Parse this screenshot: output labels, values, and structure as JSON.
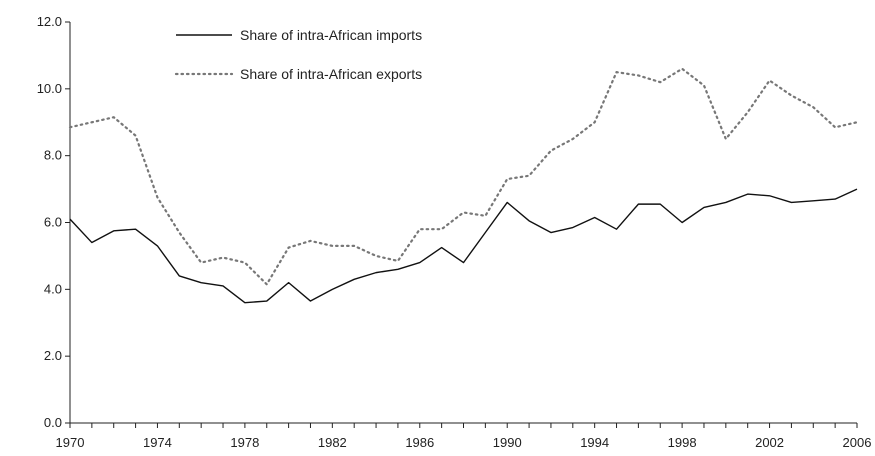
{
  "chart_data": {
    "type": "line",
    "title": "",
    "xlabel": "",
    "ylabel": "",
    "x": [
      1970,
      1971,
      1972,
      1973,
      1974,
      1975,
      1976,
      1977,
      1978,
      1979,
      1980,
      1981,
      1982,
      1983,
      1984,
      1985,
      1986,
      1987,
      1988,
      1989,
      1990,
      1991,
      1992,
      1993,
      1994,
      1995,
      1996,
      1997,
      1998,
      1999,
      2000,
      2001,
      2002,
      2003,
      2004,
      2005,
      2006
    ],
    "xlim": [
      1970,
      2006
    ],
    "ylim": [
      0,
      12
    ],
    "x_ticks": [
      "1970",
      "1974",
      "1978",
      "1982",
      "1986",
      "1990",
      "1994",
      "1998",
      "2002",
      "2006"
    ],
    "y_ticks": [
      "0.0",
      "2.0",
      "4.0",
      "6.0",
      "8.0",
      "10.0",
      "12.0"
    ],
    "grid": false,
    "legend_position": "top-left",
    "series": [
      {
        "name": "Share of intra-African imports",
        "style": "solid",
        "color": "#111111",
        "values": [
          6.1,
          5.4,
          5.75,
          5.8,
          5.3,
          4.4,
          4.2,
          4.1,
          3.6,
          3.65,
          4.2,
          3.65,
          4.0,
          4.3,
          4.5,
          4.6,
          4.8,
          5.25,
          4.8,
          5.7,
          6.6,
          6.05,
          5.7,
          5.85,
          6.15,
          5.8,
          6.55,
          6.55,
          6.0,
          6.45,
          6.6,
          6.85,
          6.8,
          6.6,
          6.65,
          6.7,
          7.0
        ]
      },
      {
        "name": "Share of intra-African exports",
        "style": "dotted",
        "color": "#777777",
        "values": [
          8.85,
          9.0,
          9.15,
          8.6,
          6.75,
          5.7,
          4.8,
          4.95,
          4.8,
          4.15,
          5.25,
          5.45,
          5.3,
          5.3,
          5.0,
          4.85,
          5.8,
          5.8,
          6.3,
          6.2,
          7.3,
          7.4,
          8.15,
          8.5,
          9.0,
          10.5,
          10.4,
          10.2,
          10.6,
          10.1,
          8.5,
          9.3,
          10.25,
          9.8,
          9.45,
          8.85,
          9.0
        ]
      }
    ]
  }
}
